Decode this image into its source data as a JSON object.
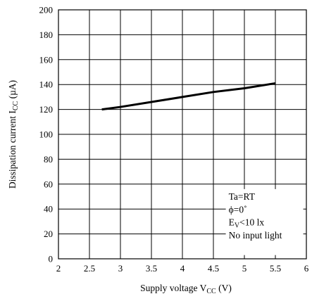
{
  "chart_data": {
    "type": "line",
    "xlabel": {
      "main": "Supply voltage V",
      "sub": "CC",
      "tail": " (V)"
    },
    "ylabel": {
      "main": "Dissipation current I",
      "sub": "CC",
      "tail": " (µA)"
    },
    "xlim": [
      2,
      6
    ],
    "ylim": [
      0,
      200
    ],
    "xticks": [
      "2",
      "2.5",
      "3",
      "3.5",
      "4",
      "4.5",
      "5",
      "5.5",
      "6"
    ],
    "yticks": [
      "0",
      "20",
      "40",
      "60",
      "80",
      "100",
      "120",
      "140",
      "160",
      "180",
      "200"
    ],
    "grid": {
      "x_step": 0.5,
      "y_step": 20
    },
    "series": [
      {
        "x": [
          2.7,
          3.0,
          3.5,
          4.0,
          4.5,
          5.0,
          5.5
        ],
        "y": [
          120,
          122,
          126,
          130,
          134,
          137,
          141
        ]
      }
    ],
    "annotations": [
      {
        "text": "Ta=RT"
      },
      {
        "text": "ϕ=0˚"
      },
      {
        "main": "E",
        "sub": "V",
        "tail": "<10 lx"
      },
      {
        "text": "No input light"
      }
    ],
    "annotation_placement": "bottom-right"
  }
}
